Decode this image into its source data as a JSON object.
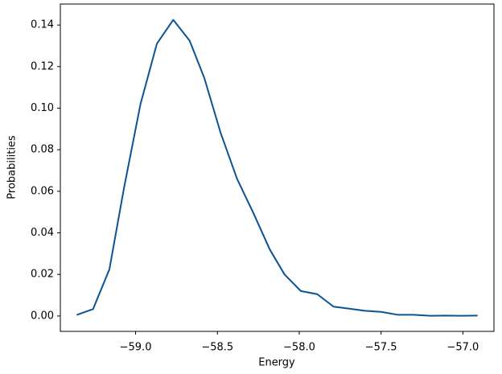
{
  "chart_data": {
    "type": "line",
    "x_label": "Energy",
    "y_label": "Probabilities",
    "x": [
      -59.36,
      -59.26,
      -59.16,
      -59.07,
      -58.97,
      -58.87,
      -58.77,
      -58.67,
      -58.58,
      -58.48,
      -58.38,
      -58.28,
      -58.18,
      -58.09,
      -57.99,
      -57.89,
      -57.79,
      -57.69,
      -57.6,
      -57.5,
      -57.4,
      -57.3,
      -57.2,
      -57.11,
      -57.01,
      -56.91
    ],
    "series": [
      {
        "color": "#0b5394",
        "values": [
          0.0005,
          0.0033,
          0.0225,
          0.062,
          0.102,
          0.131,
          0.1425,
          0.1325,
          0.1145,
          0.088,
          0.066,
          0.0495,
          0.032,
          0.02,
          0.012,
          0.0105,
          0.0045,
          0.0035,
          0.0025,
          0.002,
          0.0006,
          0.0006,
          0.0001,
          0.0002,
          0.0001,
          0.0002
        ]
      }
    ],
    "xlim": [
      -59.46,
      -56.81
    ],
    "ylim": [
      -0.0074,
      0.1501
    ],
    "xticks": [
      {
        "value": -59.0,
        "label": "−59.0"
      },
      {
        "value": -58.5,
        "label": "−58.5"
      },
      {
        "value": -58.0,
        "label": "−58.0"
      },
      {
        "value": -57.5,
        "label": "−57.5"
      },
      {
        "value": -57.0,
        "label": "−57.0"
      }
    ],
    "yticks": [
      {
        "value": 0,
        "label": "0.00"
      },
      {
        "value": 0.02,
        "label": "0.02"
      },
      {
        "value": 0.04,
        "label": "0.04"
      },
      {
        "value": 0.06,
        "label": "0.06"
      },
      {
        "value": 0.08,
        "label": "0.08"
      },
      {
        "value": 0.1,
        "label": "0.10"
      },
      {
        "value": 0.12,
        "label": "0.12"
      },
      {
        "value": 0.14,
        "label": "0.14"
      }
    ],
    "grid": false
  }
}
